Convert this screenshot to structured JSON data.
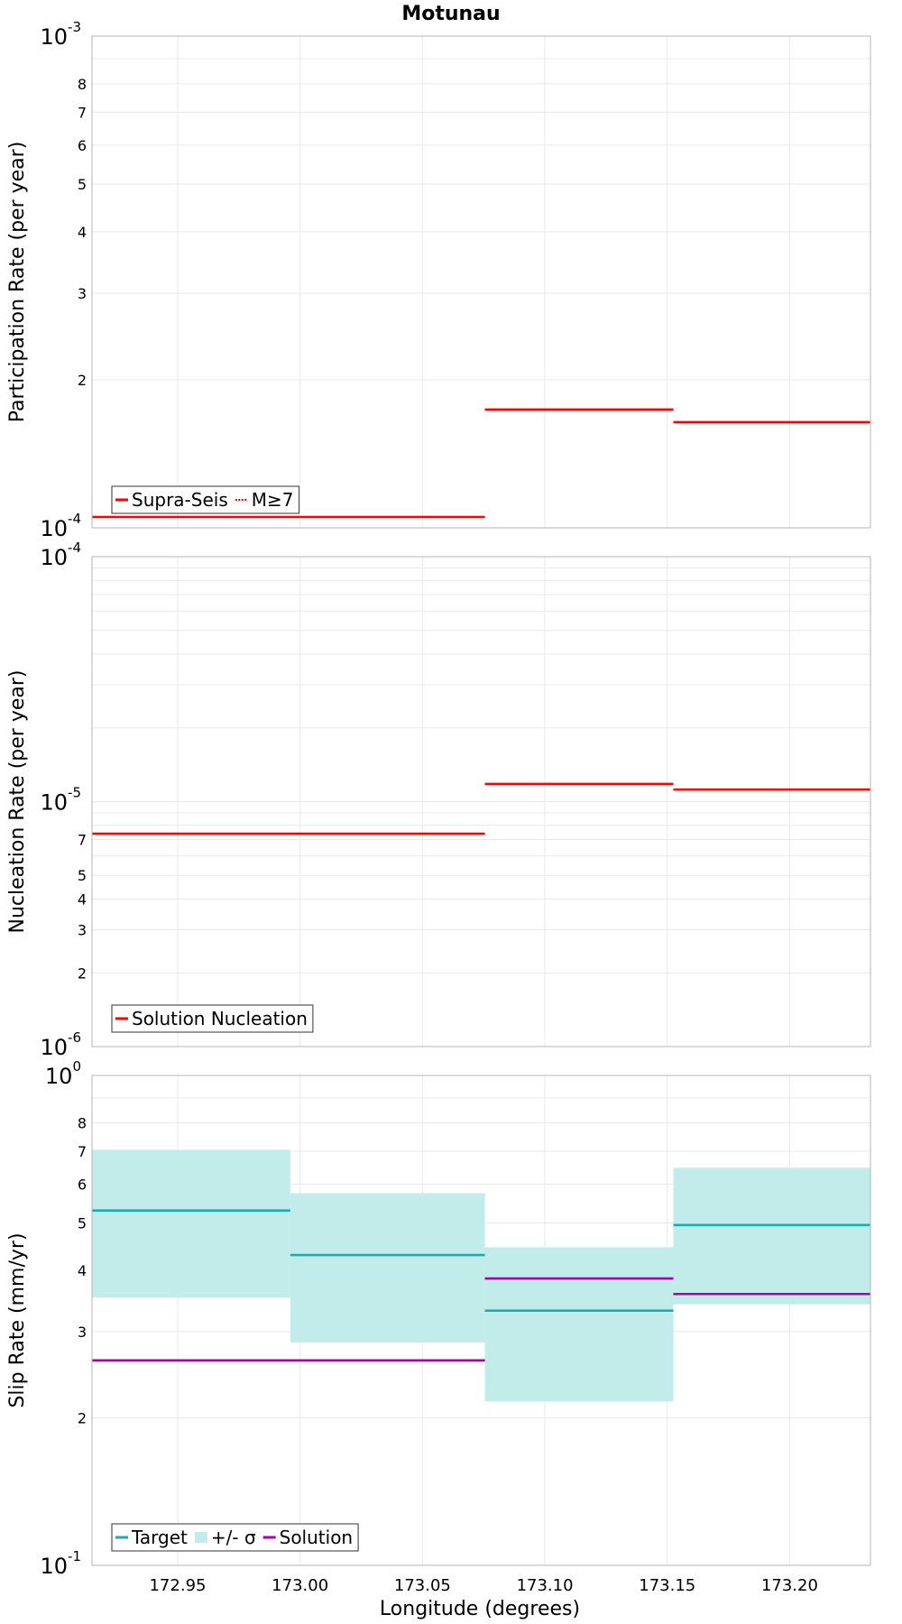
{
  "chart_data": {
    "type": "line",
    "title": "Motunau",
    "xlabel": "Longitude (degrees)",
    "xlim": [
      172.915,
      173.233
    ],
    "xticks": [
      "172.95",
      "173.00",
      "173.05",
      "173.10",
      "173.15",
      "173.20"
    ],
    "grid": true,
    "panels": [
      {
        "id": "participation",
        "ylabel": "Participation Rate (per year)",
        "yscale": "log",
        "ylim": [
          0.0001,
          0.001
        ],
        "ytick_decades": [
          {
            "value": 0.0001,
            "base": "10",
            "exp": "-4"
          },
          {
            "value": 0.001,
            "base": "10",
            "exp": "-3"
          }
        ],
        "ytick_minor_labels": [
          "2",
          "3",
          "4",
          "5",
          "6",
          "7",
          "8"
        ],
        "legend": {
          "position": "bottom-left",
          "entries": [
            {
              "label": "Supra-Seis",
              "color": "#ff0000",
              "style": "solid"
            },
            {
              "label": "M≥7",
              "color": "#ff0000",
              "style": "dotted"
            }
          ]
        },
        "series": [
          {
            "name": "Supra-Seis",
            "color": "#ff0000",
            "style": "solid",
            "segments": [
              {
                "x": [
                  172.915,
                  173.0755
                ],
                "y": 0.0001052
              },
              {
                "x": [
                  173.0755,
                  173.1525
                ],
                "y": 0.000174
              },
              {
                "x": [
                  173.1525,
                  173.233
                ],
                "y": 0.000164
              }
            ]
          },
          {
            "name": "M≥7",
            "color": "#ff0000",
            "style": "dotted",
            "segments": [
              {
                "x": [
                  172.915,
                  173.0755
                ],
                "y": 0.0001052
              },
              {
                "x": [
                  173.0755,
                  173.1525
                ],
                "y": 0.000174
              },
              {
                "x": [
                  173.1525,
                  173.233
                ],
                "y": 0.000164
              }
            ]
          }
        ]
      },
      {
        "id": "nucleation",
        "ylabel": "Nucleation Rate (per year)",
        "yscale": "log",
        "ylim": [
          1e-06,
          0.0001
        ],
        "ytick_decades": [
          {
            "value": 1e-06,
            "base": "10",
            "exp": "-6"
          },
          {
            "value": 1e-05,
            "base": "10",
            "exp": "-5"
          },
          {
            "value": 0.0001,
            "base": "10",
            "exp": "-4"
          }
        ],
        "ytick_minor_labels": [
          "2",
          "3",
          "4",
          "5",
          "7"
        ],
        "legend": {
          "position": "bottom-left",
          "entries": [
            {
              "label": "Solution Nucleation",
              "color": "#ff0000",
              "style": "solid"
            }
          ]
        },
        "series": [
          {
            "name": "Solution Nucleation",
            "color": "#ff0000",
            "style": "solid",
            "segments": [
              {
                "x": [
                  172.915,
                  173.0755
                ],
                "y": 7.4e-06
              },
              {
                "x": [
                  173.0755,
                  173.1525
                ],
                "y": 1.18e-05
              },
              {
                "x": [
                  173.1525,
                  173.233
                ],
                "y": 1.12e-05
              }
            ]
          }
        ]
      },
      {
        "id": "slip",
        "ylabel": "Slip Rate (mm/yr)",
        "yscale": "log",
        "ylim": [
          0.1,
          1
        ],
        "ytick_decades": [
          {
            "value": 0.1,
            "base": "10",
            "exp": "-1"
          },
          {
            "value": 1,
            "base": "10",
            "exp": "0"
          }
        ],
        "ytick_minor_labels": [
          "2",
          "3",
          "4",
          "5",
          "6",
          "7",
          "8"
        ],
        "legend": {
          "position": "bottom-left",
          "entries": [
            {
              "label": "Target",
              "color": "#1aadad",
              "style": "solid"
            },
            {
              "label": "+/- σ",
              "color": "#c2ecea",
              "style": "band"
            },
            {
              "label": "Solution",
              "color": "#aa00aa",
              "style": "solid"
            }
          ]
        },
        "bands": [
          {
            "x": [
              172.915,
              172.996
            ],
            "lower": 0.352,
            "upper": 0.705
          },
          {
            "x": [
              172.996,
              173.0755
            ],
            "lower": 0.285,
            "upper": 0.575
          },
          {
            "x": [
              173.0755,
              173.1525
            ],
            "lower": 0.216,
            "upper": 0.446
          },
          {
            "x": [
              173.1525,
              173.233
            ],
            "lower": 0.341,
            "upper": 0.648
          }
        ],
        "series": [
          {
            "name": "Target",
            "color": "#1aadad",
            "style": "solid",
            "segments": [
              {
                "x": [
                  172.915,
                  172.996
                ],
                "y": 0.53
              },
              {
                "x": [
                  172.996,
                  173.0755
                ],
                "y": 0.43
              },
              {
                "x": [
                  173.0755,
                  173.1525
                ],
                "y": 0.331
              },
              {
                "x": [
                  173.1525,
                  173.233
                ],
                "y": 0.495
              }
            ]
          },
          {
            "name": "Solution",
            "color": "#aa00aa",
            "style": "solid",
            "segments": [
              {
                "x": [
                  172.915,
                  173.0755
                ],
                "y": 0.262
              },
              {
                "x": [
                  173.0755,
                  173.1525
                ],
                "y": 0.385
              },
              {
                "x": [
                  173.1525,
                  173.233
                ],
                "y": 0.358
              }
            ]
          }
        ]
      }
    ]
  }
}
